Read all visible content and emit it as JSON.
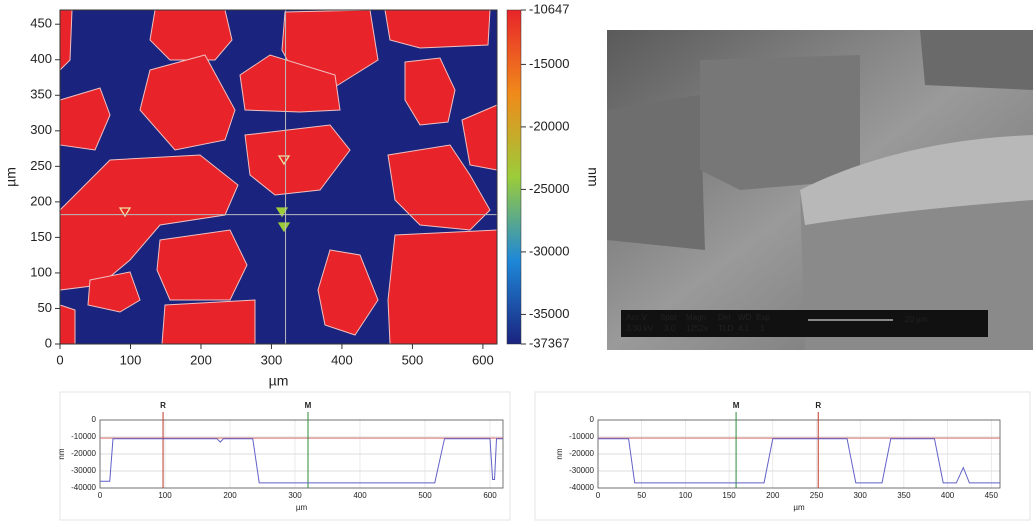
{
  "chart_data": [
    {
      "type": "map",
      "xlabel": "µm",
      "ylabel": "µm",
      "colorbar_label": "nm",
      "xlim": [
        0,
        620
      ],
      "ylim": [
        0,
        470
      ],
      "xticks": [
        0,
        100,
        200,
        300,
        400,
        500,
        600
      ],
      "yticks": [
        0,
        50,
        100,
        150,
        200,
        250,
        300,
        350,
        400,
        450
      ],
      "clim": [
        -37367,
        -10647
      ],
      "cticks": [
        -10647,
        -15000,
        -20000,
        -25000,
        -30000,
        -35000,
        -37367
      ],
      "colormap": [
        "#1a237e",
        "#1e88d8",
        "#9ccc3a",
        "#f08a1a",
        "#e8242a"
      ],
      "crosshair": {
        "x": 320,
        "y": 182
      }
    },
    {
      "type": "line",
      "xlabel": "µm",
      "ylabel": "nm",
      "xlim": [
        0,
        620
      ],
      "ylim": [
        -40000,
        0
      ],
      "xticks": [
        0,
        100,
        200,
        300,
        400,
        500,
        600
      ],
      "yticks": [
        0,
        -10000,
        -20000,
        -30000,
        -40000
      ],
      "reference": -10647,
      "reference_color": "#e07070",
      "markers": [
        {
          "label": "R",
          "x": 97,
          "color": "#c0392b"
        },
        {
          "label": "M",
          "x": 320,
          "color": "#2e8b3a"
        }
      ],
      "series": [
        {
          "color": "#6060c8",
          "x": [
            0,
            15,
            20,
            180,
            185,
            190,
            235,
            245,
            515,
            530,
            600,
            604,
            607,
            610,
            620
          ],
          "values": [
            -36000,
            -36000,
            -11000,
            -11000,
            -13000,
            -11000,
            -11000,
            -37000,
            -37000,
            -11000,
            -11000,
            -35000,
            -35000,
            -11000,
            -11000
          ]
        }
      ]
    },
    {
      "type": "line",
      "xlabel": "µm",
      "ylabel": "nm",
      "xlim": [
        0,
        460
      ],
      "ylim": [
        -40000,
        0
      ],
      "xticks": [
        0,
        50,
        100,
        150,
        200,
        250,
        300,
        350,
        400,
        450
      ],
      "yticks": [
        0,
        -10000,
        -20000,
        -30000,
        -40000
      ],
      "reference": -10647,
      "reference_color": "#e07070",
      "markers": [
        {
          "label": "M",
          "x": 158,
          "color": "#2e8b3a"
        },
        {
          "label": "R",
          "x": 252,
          "color": "#c0392b"
        }
      ],
      "series": [
        {
          "color": "#6060c8",
          "x": [
            0,
            35,
            42,
            190,
            200,
            285,
            295,
            325,
            335,
            385,
            395,
            410,
            418,
            425,
            460
          ],
          "values": [
            -11000,
            -11000,
            -37000,
            -37000,
            -11000,
            -11000,
            -37000,
            -37000,
            -11000,
            -11000,
            -37000,
            -37000,
            -28000,
            -37000,
            -37000
          ]
        }
      ]
    }
  ],
  "sem_image": {
    "info_header": [
      "Acc.V",
      "Spot",
      "Magn",
      "Det",
      "WD",
      "Exp"
    ],
    "info_values": [
      "3.30 kV",
      "3.0",
      "1252x",
      "TLD",
      "4.1",
      "1"
    ],
    "scale_label": "20 µm"
  }
}
